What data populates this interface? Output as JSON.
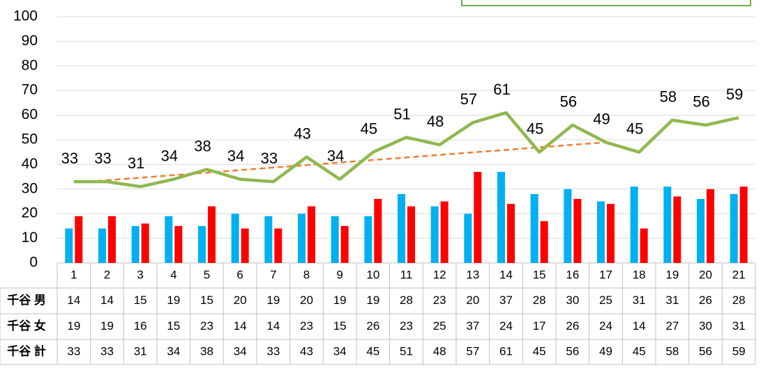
{
  "chart_data": {
    "type": "bar-line",
    "categories": [
      "1",
      "2",
      "3",
      "4",
      "5",
      "6",
      "7",
      "8",
      "9",
      "10",
      "11",
      "12",
      "13",
      "14",
      "15",
      "16",
      "17",
      "18",
      "19",
      "20",
      "21"
    ],
    "series": [
      {
        "name": "千谷 男",
        "color": "#00b0f0",
        "kind": "bar",
        "values": [
          14,
          14,
          15,
          19,
          15,
          20,
          19,
          20,
          19,
          19,
          28,
          23,
          20,
          37,
          28,
          30,
          25,
          31,
          31,
          26,
          28
        ]
      },
      {
        "name": "千谷 女",
        "color": "#ff0000",
        "kind": "bar",
        "values": [
          19,
          19,
          16,
          15,
          23,
          14,
          14,
          23,
          15,
          26,
          23,
          25,
          37,
          24,
          17,
          26,
          24,
          14,
          27,
          30,
          31
        ]
      },
      {
        "name": "千谷 計",
        "color": "#8fb84e",
        "kind": "line",
        "values": [
          33,
          33,
          31,
          34,
          38,
          34,
          33,
          43,
          34,
          45,
          51,
          48,
          57,
          61,
          45,
          56,
          49,
          45,
          58,
          56,
          59
        ]
      }
    ],
    "trendline": {
      "x": [
        1,
        17
      ],
      "values": [
        33,
        49
      ],
      "color": "#ed7d31"
    },
    "ylim": [
      0,
      100
    ],
    "yticks": [
      0,
      10,
      20,
      30,
      40,
      50,
      60,
      70,
      80,
      90,
      100
    ],
    "grid": true
  }
}
